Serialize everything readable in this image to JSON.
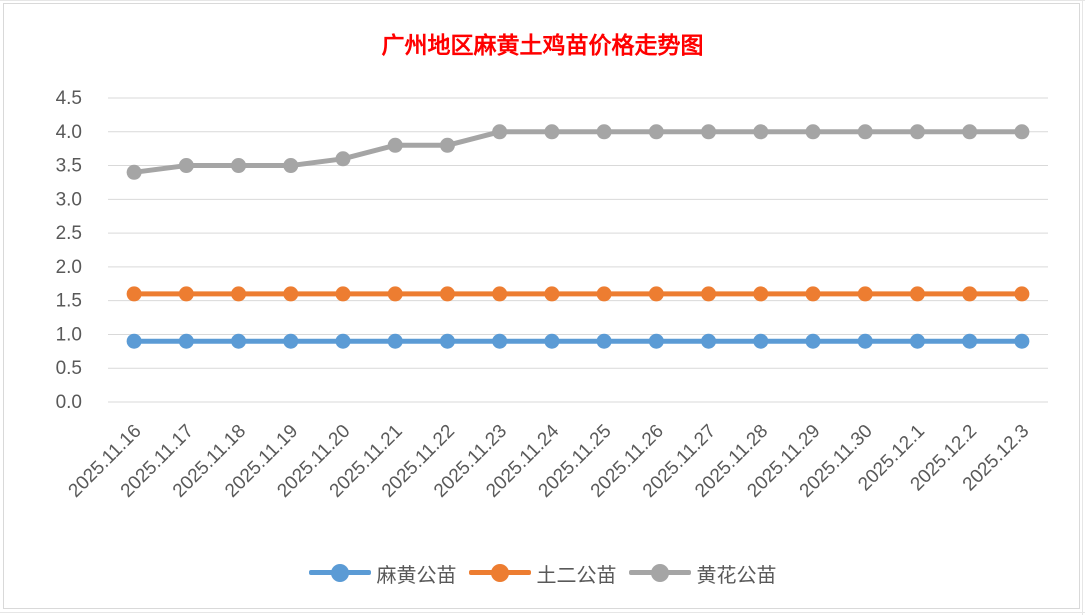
{
  "chart_data": {
    "type": "line",
    "title": "广州地区麻黄土鸡苗价格走势图",
    "categories": [
      "2025.11.16",
      "2025.11.17",
      "2025.11.18",
      "2025.11.19",
      "2025.11.20",
      "2025.11.21",
      "2025.11.22",
      "2025.11.23",
      "2025.11.24",
      "2025.11.25",
      "2025.11.26",
      "2025.11.27",
      "2025.11.28",
      "2025.11.29",
      "2025.11.30",
      "2025.12.1",
      "2025.12.2",
      "2025.12.3"
    ],
    "series": [
      {
        "name": "麻黄公苗",
        "color": "#5b9bd5",
        "values": [
          0.9,
          0.9,
          0.9,
          0.9,
          0.9,
          0.9,
          0.9,
          0.9,
          0.9,
          0.9,
          0.9,
          0.9,
          0.9,
          0.9,
          0.9,
          0.9,
          0.9,
          0.9
        ]
      },
      {
        "name": "土二公苗",
        "color": "#ed7d31",
        "values": [
          1.6,
          1.6,
          1.6,
          1.6,
          1.6,
          1.6,
          1.6,
          1.6,
          1.6,
          1.6,
          1.6,
          1.6,
          1.6,
          1.6,
          1.6,
          1.6,
          1.6,
          1.6
        ]
      },
      {
        "name": "黄花公苗",
        "color": "#a5a5a5",
        "values": [
          3.4,
          3.5,
          3.5,
          3.5,
          3.6,
          3.8,
          3.8,
          4.0,
          4.0,
          4.0,
          4.0,
          4.0,
          4.0,
          4.0,
          4.0,
          4.0,
          4.0,
          4.0
        ]
      }
    ],
    "yticks": [
      "0.0",
      "0.5",
      "1.0",
      "1.5",
      "2.0",
      "2.5",
      "3.0",
      "3.5",
      "4.0",
      "4.5"
    ],
    "ylim": [
      0,
      4.5
    ],
    "xlabel": "",
    "ylabel": "",
    "grid": true,
    "legend": "bottom"
  }
}
